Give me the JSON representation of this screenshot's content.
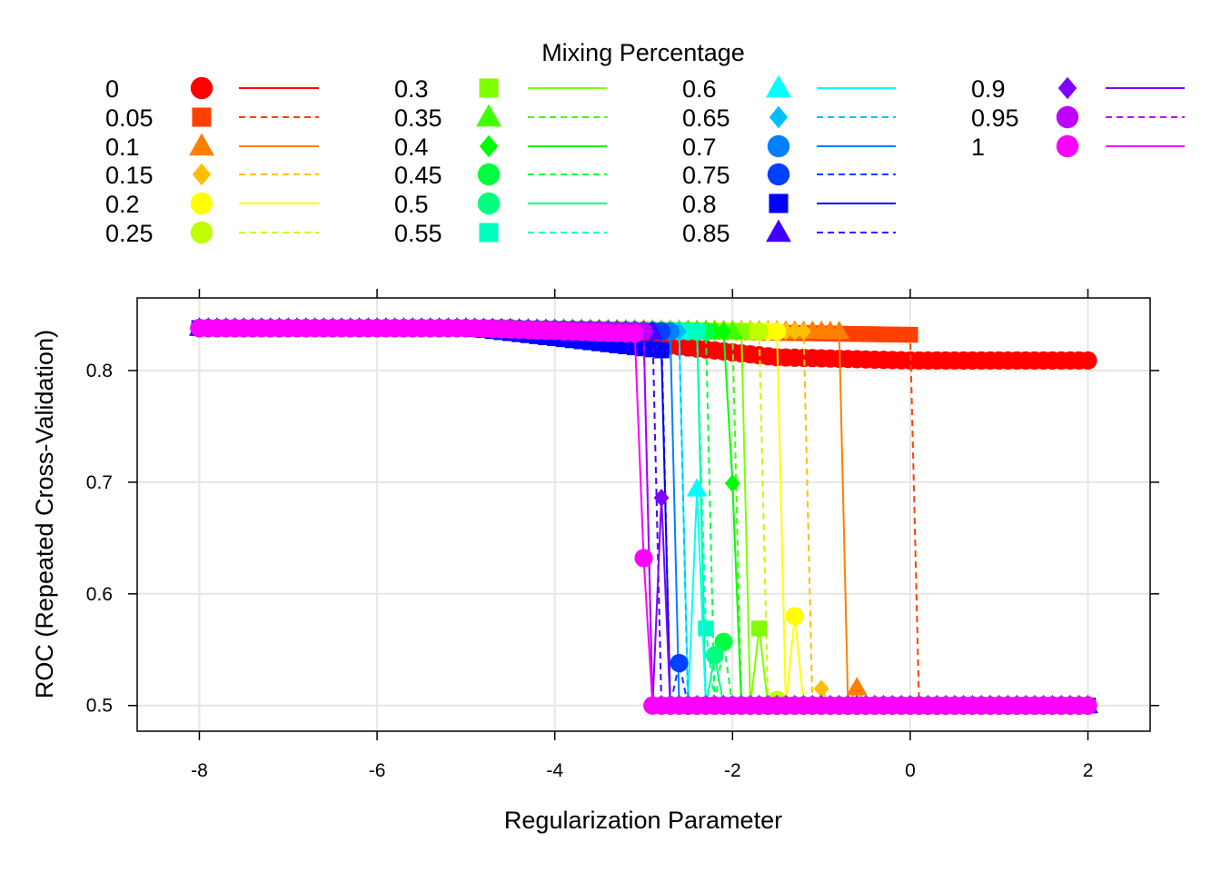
{
  "chart_data": {
    "type": "line",
    "legend_title": "Mixing Percentage",
    "legend_placement": "top",
    "xlabel": "Regularization Parameter",
    "ylabel": "ROC (Repeated Cross-Validation)",
    "xlim": [
      -8.7,
      2.7
    ],
    "ylim": [
      0.477,
      0.865
    ],
    "xticks": [
      -8,
      -6,
      -4,
      -2,
      0,
      2
    ],
    "xtick_labels": [
      "-8",
      "-6",
      "-4",
      "-2",
      "0",
      "2"
    ],
    "yticks": [
      0.5,
      0.6,
      0.7,
      0.8
    ],
    "ytick_labels": [
      "0.5",
      "0.6",
      "0.7",
      "0.8"
    ],
    "grid": true,
    "x_start": -8,
    "x_end": 2,
    "x_step": 0.1,
    "series": [
      {
        "name": "0",
        "color": "#FF0000",
        "marker": "circle",
        "dash": "solid",
        "start": 0.838,
        "plateau": 0.838,
        "drop_x": null,
        "mid_x": null,
        "mid_y": null,
        "end_y": 0.809
      },
      {
        "name": "0.05",
        "color": "#FF4000",
        "marker": "square",
        "dash": "dashed",
        "start": 0.838,
        "plateau": 0.832,
        "drop_x": 0.1,
        "mid_x": null,
        "mid_y": null,
        "end_y": 0.5
      },
      {
        "name": "0.1",
        "color": "#FF7F00",
        "marker": "triangle",
        "dash": "solid",
        "start": 0.838,
        "plateau": 0.835,
        "drop_x": -0.7,
        "mid_x": -0.6,
        "mid_y": 0.516,
        "end_y": 0.5
      },
      {
        "name": "0.15",
        "color": "#FFBF00",
        "marker": "diamond",
        "dash": "dashed",
        "start": 0.838,
        "plateau": 0.835,
        "drop_x": -1.1,
        "mid_x": -1.0,
        "mid_y": 0.515,
        "end_y": 0.5
      },
      {
        "name": "0.2",
        "color": "#FFFF00",
        "marker": "circle",
        "dash": "solid",
        "start": 0.838,
        "plateau": 0.835,
        "drop_x": -1.4,
        "mid_x": -1.3,
        "mid_y": 0.58,
        "end_y": 0.5
      },
      {
        "name": "0.25",
        "color": "#BFFF00",
        "marker": "circle",
        "dash": "dashed",
        "start": 0.838,
        "plateau": 0.835,
        "drop_x": -1.6,
        "mid_x": -1.5,
        "mid_y": 0.505,
        "end_y": 0.5
      },
      {
        "name": "0.3",
        "color": "#80FF00",
        "marker": "square",
        "dash": "solid",
        "start": 0.838,
        "plateau": 0.835,
        "drop_x": -1.8,
        "mid_x": -1.7,
        "mid_y": 0.569,
        "end_y": 0.5
      },
      {
        "name": "0.35",
        "color": "#40FF00",
        "marker": "triangle",
        "dash": "dashed",
        "start": 0.838,
        "plateau": 0.835,
        "drop_x": -1.9,
        "mid_x": null,
        "mid_y": null,
        "end_y": 0.5
      },
      {
        "name": "0.4",
        "color": "#00FF00",
        "marker": "diamond",
        "dash": "solid",
        "start": 0.838,
        "plateau": 0.835,
        "drop_x": -2.0,
        "mid_x": -2.0,
        "mid_y": 0.699,
        "end_y": 0.5
      },
      {
        "name": "0.45",
        "color": "#00FF40",
        "marker": "circle",
        "dash": "dashed",
        "start": 0.838,
        "plateau": 0.835,
        "drop_x": -2.2,
        "mid_x": -2.1,
        "mid_y": 0.557,
        "end_y": 0.5
      },
      {
        "name": "0.5",
        "color": "#00FF80",
        "marker": "circle",
        "dash": "solid",
        "start": 0.838,
        "plateau": 0.835,
        "drop_x": -2.3,
        "mid_x": -2.2,
        "mid_y": 0.545,
        "end_y": 0.5
      },
      {
        "name": "0.55",
        "color": "#00FFBF",
        "marker": "square",
        "dash": "dashed",
        "start": 0.838,
        "plateau": 0.835,
        "drop_x": -2.3,
        "mid_x": -2.3,
        "mid_y": 0.569,
        "end_y": 0.5
      },
      {
        "name": "0.6",
        "color": "#00FFFF",
        "marker": "triangle",
        "dash": "solid",
        "start": 0.838,
        "plateau": 0.835,
        "drop_x": -2.5,
        "mid_x": -2.4,
        "mid_y": 0.694,
        "end_y": 0.5
      },
      {
        "name": "0.65",
        "color": "#00BFFF",
        "marker": "diamond",
        "dash": "dashed",
        "start": 0.838,
        "plateau": 0.835,
        "drop_x": -2.5,
        "mid_x": null,
        "mid_y": null,
        "end_y": 0.5
      },
      {
        "name": "0.7",
        "color": "#0080FF",
        "marker": "circle",
        "dash": "solid",
        "start": 0.838,
        "plateau": 0.835,
        "drop_x": -2.6,
        "mid_x": null,
        "mid_y": null,
        "end_y": 0.5
      },
      {
        "name": "0.75",
        "color": "#0040FF",
        "marker": "circle",
        "dash": "dashed",
        "start": 0.838,
        "plateau": 0.835,
        "drop_x": -2.7,
        "mid_x": -2.6,
        "mid_y": 0.538,
        "end_y": 0.5
      },
      {
        "name": "0.8",
        "color": "#0000FF",
        "marker": "square",
        "dash": "solid",
        "start": 0.838,
        "plateau": 0.818,
        "drop_x": -2.7,
        "mid_x": null,
        "mid_y": null,
        "end_y": 0.5
      },
      {
        "name": "0.85",
        "color": "#4000FF",
        "marker": "triangle",
        "dash": "dashed",
        "start": 0.838,
        "plateau": 0.835,
        "drop_x": -2.8,
        "mid_x": null,
        "mid_y": null,
        "end_y": 0.5
      },
      {
        "name": "0.9",
        "color": "#8000FF",
        "marker": "diamond",
        "dash": "solid",
        "start": 0.838,
        "plateau": 0.835,
        "drop_x": -2.9,
        "mid_x": -2.8,
        "mid_y": 0.686,
        "end_y": 0.5
      },
      {
        "name": "0.95",
        "color": "#BF00FF",
        "marker": "circle",
        "dash": "dashed",
        "start": 0.838,
        "plateau": 0.835,
        "drop_x": -2.9,
        "mid_x": null,
        "mid_y": null,
        "end_y": 0.5
      },
      {
        "name": "1",
        "color": "#FF00FF",
        "marker": "circle",
        "dash": "solid",
        "start": 0.838,
        "plateau": 0.833,
        "drop_x": -3.0,
        "mid_x": -3.0,
        "mid_y": 0.632,
        "end_y": 0.5
      }
    ]
  }
}
